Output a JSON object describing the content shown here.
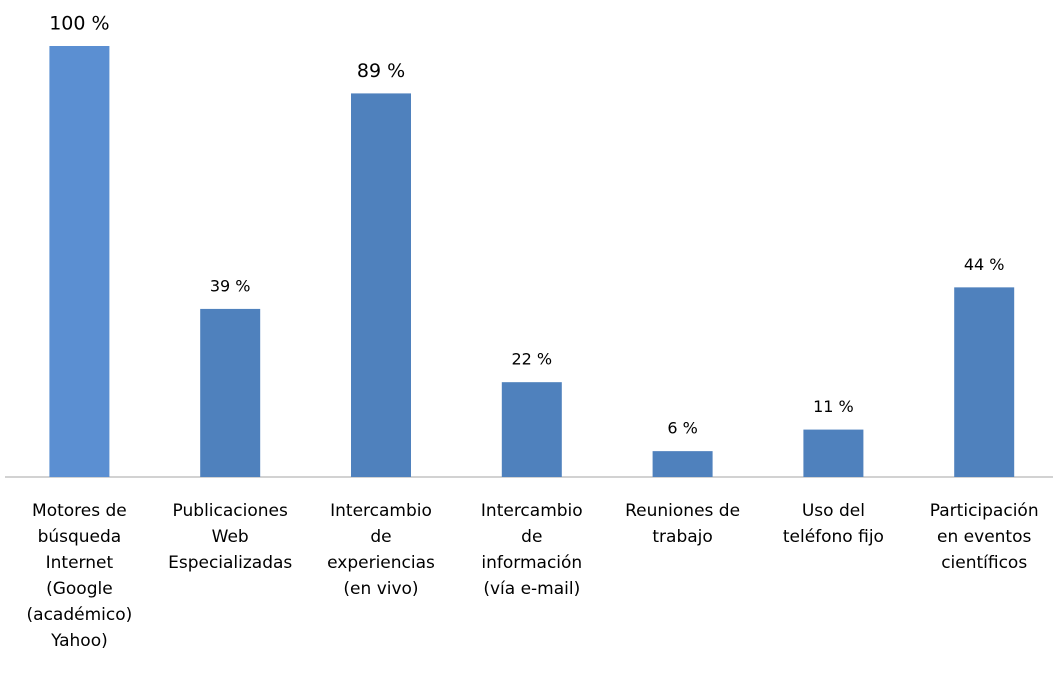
{
  "chart_data": {
    "type": "bar",
    "categories": [
      [
        "Motores de",
        "búsqueda",
        "Internet",
        "(Google",
        "(académico)",
        "Yahoo)"
      ],
      [
        "Publicaciones",
        "Web",
        "Especializadas"
      ],
      [
        "Intercambio",
        "de",
        "experiencias",
        "(en vivo)"
      ],
      [
        "Intercambio",
        "de",
        "información",
        "(vía e-mail)"
      ],
      [
        "Reuniones de",
        "trabajo"
      ],
      [
        "Uso del",
        "teléfono fijo"
      ],
      [
        "Participación",
        "en eventos",
        "científicos"
      ]
    ],
    "values": [
      100,
      39,
      89,
      22,
      6,
      11,
      44
    ],
    "value_labels": [
      "100 %",
      "39 %",
      "89 %",
      "22 %",
      "6 %",
      "11 %",
      "44 %"
    ],
    "colors": [
      "#5b8fd2",
      "#4f81bd",
      "#4f81bd",
      "#4f81bd",
      "#4f81bd",
      "#4f81bd",
      "#4f81bd"
    ]
  }
}
